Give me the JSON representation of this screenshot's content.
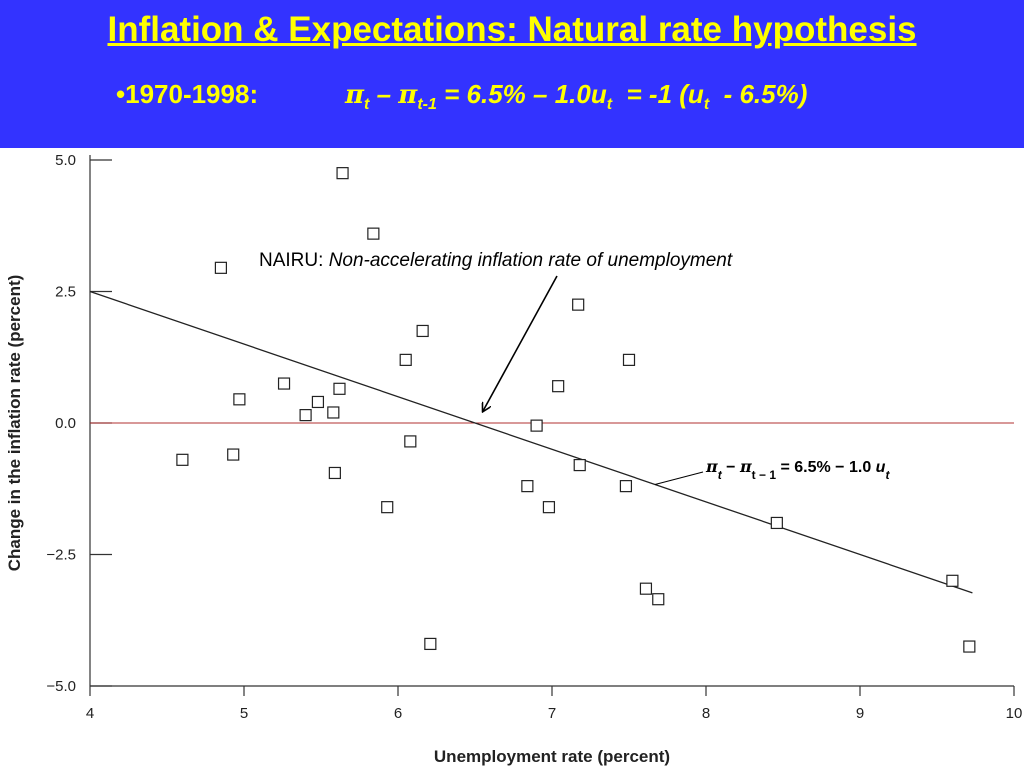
{
  "slide": {
    "title": "Inflation & Expectations: Natural rate hypothesis",
    "period": "•1970-1998:",
    "equation": {
      "pi": "π",
      "t": "t",
      "minus": "–",
      "tm1": "t-1",
      "mid": "= 6.5% – 1.0u",
      "t2": "t",
      "eq2": "= -1 (u",
      "t3": "t",
      "end": "- 6.5%)"
    }
  },
  "colors": {
    "banner": "#3333ff",
    "title": "#ffff00",
    "zero_line": "#b03030"
  },
  "chart_data": {
    "type": "scatter",
    "xlabel": "Unemployment rate (percent)",
    "ylabel": "Change in the inflation rate (percent)",
    "xlim": [
      4,
      10
    ],
    "ylim": [
      -5,
      5
    ],
    "xticks": [
      "4",
      "5",
      "6",
      "7",
      "8",
      "9",
      "10"
    ],
    "yticks": [
      "5.0",
      "2.5",
      "0.0",
      "−2.5",
      "−5.0"
    ],
    "xtick_values": [
      4,
      5,
      6,
      7,
      8,
      9,
      10
    ],
    "ytick_values": [
      5,
      2.5,
      0,
      -2.5,
      -5
    ],
    "grid": false,
    "zero_line": true,
    "marker": "open-square",
    "points": [
      {
        "x": 4.6,
        "y": -0.7
      },
      {
        "x": 4.85,
        "y": 2.95
      },
      {
        "x": 4.93,
        "y": -0.6
      },
      {
        "x": 4.97,
        "y": 0.45
      },
      {
        "x": 5.26,
        "y": 0.75
      },
      {
        "x": 5.4,
        "y": 0.15
      },
      {
        "x": 5.48,
        "y": 0.4
      },
      {
        "x": 5.58,
        "y": 0.2
      },
      {
        "x": 5.59,
        "y": -0.95
      },
      {
        "x": 5.62,
        "y": 0.65
      },
      {
        "x": 5.64,
        "y": 4.75
      },
      {
        "x": 5.84,
        "y": 3.6
      },
      {
        "x": 5.93,
        "y": -1.6
      },
      {
        "x": 6.05,
        "y": 1.2
      },
      {
        "x": 6.08,
        "y": -0.35
      },
      {
        "x": 6.16,
        "y": 1.75
      },
      {
        "x": 6.21,
        "y": -4.2
      },
      {
        "x": 6.84,
        "y": -1.2
      },
      {
        "x": 6.9,
        "y": -0.05
      },
      {
        "x": 6.98,
        "y": -1.6
      },
      {
        "x": 7.04,
        "y": 0.7
      },
      {
        "x": 7.17,
        "y": 2.25
      },
      {
        "x": 7.18,
        "y": -0.8
      },
      {
        "x": 7.48,
        "y": -1.2
      },
      {
        "x": 7.5,
        "y": 1.2
      },
      {
        "x": 7.61,
        "y": -3.15
      },
      {
        "x": 7.69,
        "y": -3.35
      },
      {
        "x": 8.46,
        "y": -1.9
      },
      {
        "x": 9.6,
        "y": -3.0
      },
      {
        "x": 9.71,
        "y": -4.25
      }
    ],
    "fit_line": {
      "intercept": 6.5,
      "slope": -1.0,
      "x_range": [
        4,
        9.73
      ]
    },
    "annotations": {
      "nairu_prefix": "NAIRU: ",
      "nairu_text": "Non-accelerating inflation rate of unemployment",
      "nairu_x": 6.5,
      "eq_pi1": "π",
      "eq_t": "t",
      "eq_minus": " − ",
      "eq_pi2": "π",
      "eq_tm1": "t − 1",
      "eq_rest": " = 6.5% − 1.0 ",
      "eq_u": "u",
      "eq_t2": "t"
    }
  }
}
